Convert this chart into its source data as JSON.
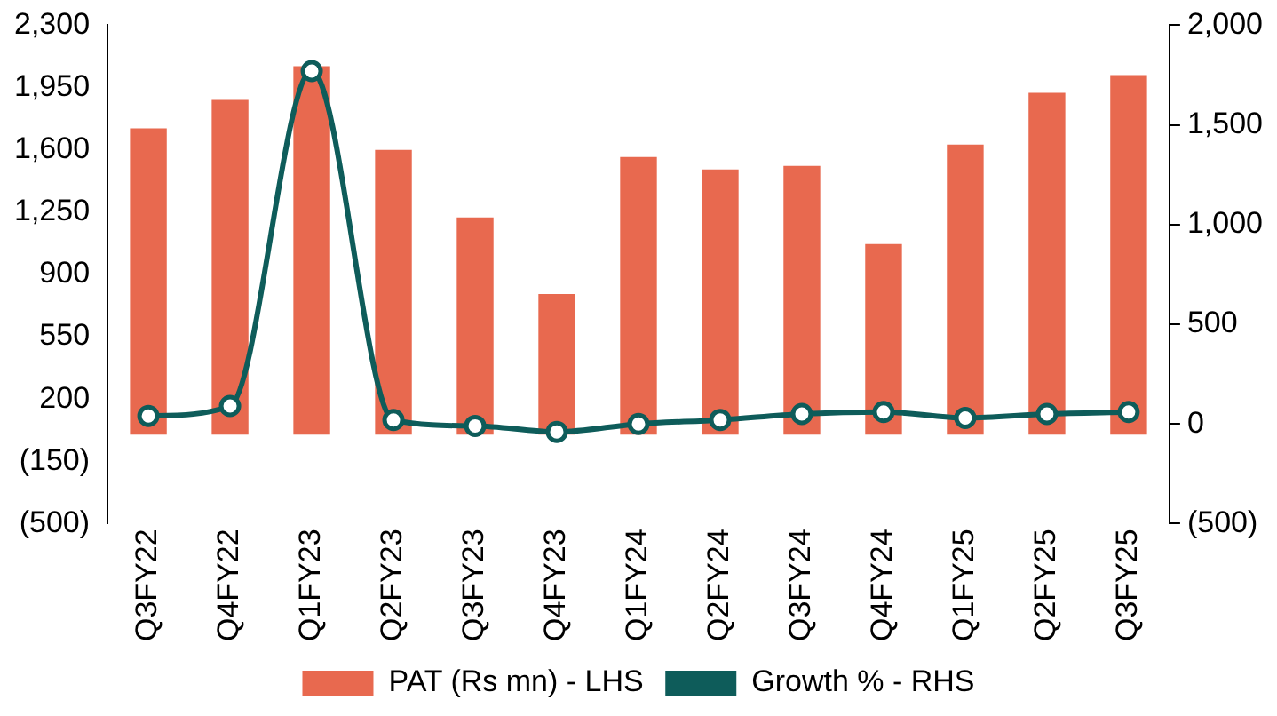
{
  "chart_data": {
    "type": "bar",
    "categories": [
      "Q3FY22",
      "Q4FY22",
      "Q1FY23",
      "Q2FY23",
      "Q3FY23",
      "Q4FY23",
      "Q1FY24",
      "Q2FY24",
      "Q3FY24",
      "Q4FY24",
      "Q1FY25",
      "Q2FY25",
      "Q3FY25"
    ],
    "series": [
      {
        "name": "PAT (Rs mn) - LHS",
        "color": "#e8694f",
        "values": [
          1720,
          1880,
          2070,
          1600,
          1220,
          790,
          1560,
          1490,
          1510,
          1070,
          1630,
          1920,
          2020
        ]
      },
      {
        "name": "Growth % - RHS",
        "type": "line",
        "axis": "y2",
        "color": "#0e5c5a",
        "values": [
          40,
          90,
          1770,
          20,
          -10,
          -40,
          0,
          20,
          50,
          60,
          30,
          50,
          60
        ]
      }
    ],
    "ylim": [
      -500,
      2300
    ],
    "yticks": [
      {
        "value": -500,
        "label": "(500)"
      },
      {
        "value": -150,
        "label": "(150)"
      },
      200,
      550,
      900,
      {
        "value": 1250,
        "label": "1,250"
      },
      {
        "value": 1600,
        "label": "1,600"
      },
      {
        "value": 1950,
        "label": "1,950"
      },
      {
        "value": 2300,
        "label": "2,300"
      }
    ],
    "y2lim": [
      -500,
      2000
    ],
    "y2ticks": [
      {
        "value": -500,
        "label": "(500)"
      },
      0,
      500,
      {
        "value": 1000,
        "label": "1,000"
      },
      {
        "value": 1500,
        "label": "1,500"
      },
      {
        "value": 2000,
        "label": "2,000"
      }
    ],
    "grid": false,
    "legend": "bottom",
    "marker": "circle",
    "line_style": "solid"
  }
}
